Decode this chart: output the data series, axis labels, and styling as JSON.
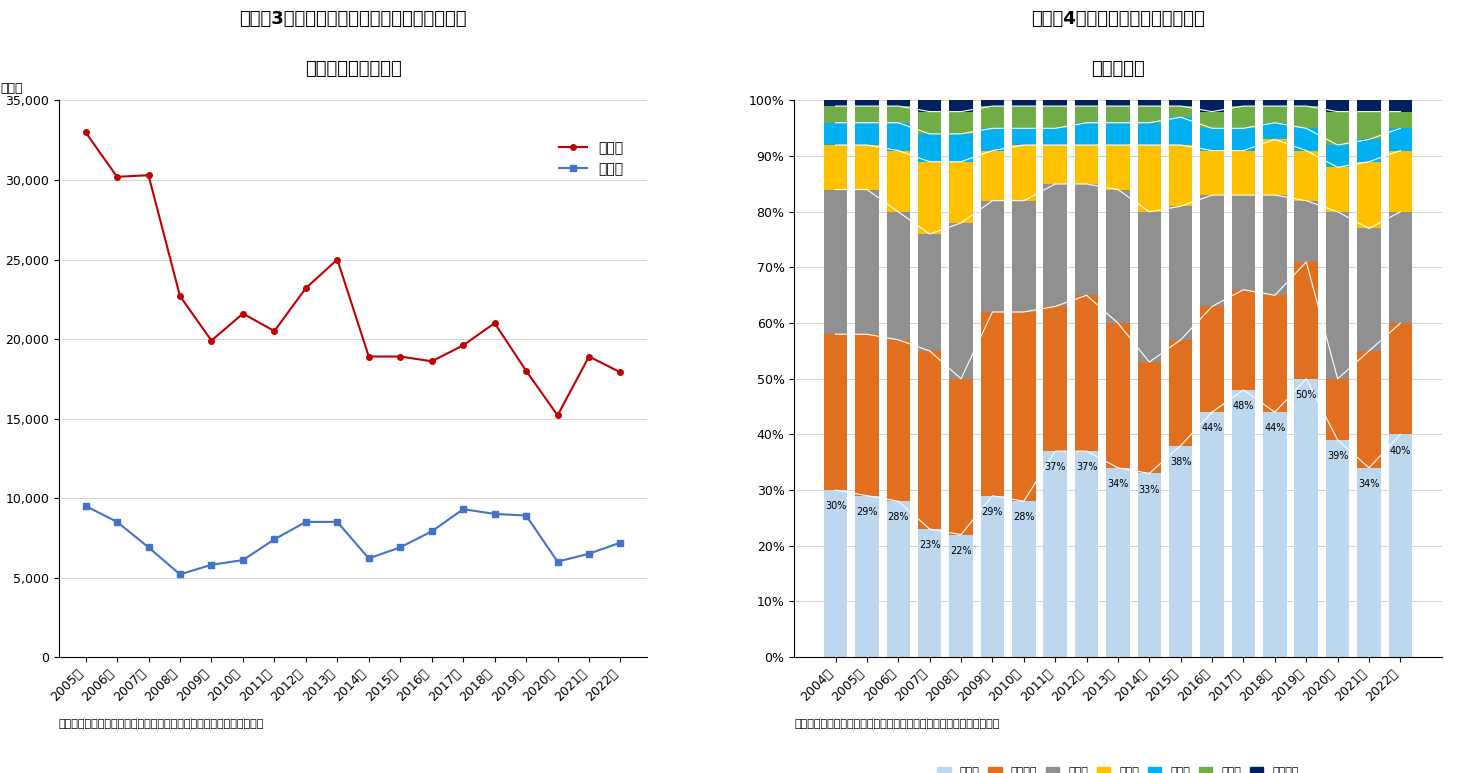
{
  "chart3": {
    "title1": "図表－3　新築分譲マンションの新規供給戸数",
    "title2": "＜近畿圏、大阪市＞",
    "years": [
      "2005年",
      "2006年",
      "2007年",
      "2008年",
      "2009年",
      "2010年",
      "2011年",
      "2012年",
      "2013年",
      "2014年",
      "2015年",
      "2016年",
      "2017年",
      "2018年",
      "2019年",
      "2020年",
      "2021年",
      "2022年"
    ],
    "kinki": [
      33000,
      30200,
      30300,
      22700,
      19900,
      21600,
      20500,
      23200,
      25000,
      18900,
      18900,
      18600,
      19600,
      21000,
      18000,
      15200,
      18900,
      17900
    ],
    "osaka": [
      9500,
      8500,
      6900,
      5200,
      5800,
      6100,
      7400,
      8500,
      8500,
      6200,
      6900,
      7900,
      9300,
      9000,
      8900,
      6000,
      6500,
      7200
    ],
    "kinki_color": "#c00000",
    "osaka_color": "#4472c4",
    "ylabel": "（戸）",
    "ylim": [
      0,
      35000
    ],
    "yticks": [
      0,
      5000,
      10000,
      15000,
      20000,
      25000,
      30000,
      35000
    ],
    "legend_kinki": "近畿圏",
    "legend_osaka": "大阪市",
    "source": "（出所）不動産経済研究所のデータをもとにニッセイ基礎研究所作成"
  },
  "chart4": {
    "title1": "図表－4　新規供給戸数の地域内訳",
    "title2": "＜近畿圏＞",
    "years": [
      "2004年",
      "2005年",
      "2006年",
      "2007年",
      "2008年",
      "2009年",
      "2010年",
      "2011年",
      "2012年",
      "2013年",
      "2014年",
      "2015年",
      "2016年",
      "2017年",
      "2018年",
      "2019年",
      "2020年",
      "2021年",
      "2022年"
    ],
    "osaka_shi": [
      30,
      29,
      28,
      23,
      22,
      29,
      28,
      37,
      37,
      34,
      33,
      38,
      44,
      48,
      44,
      50,
      39,
      34,
      40
    ],
    "osaka_fu": [
      28,
      29,
      29,
      32,
      28,
      33,
      34,
      26,
      28,
      26,
      20,
      19,
      19,
      18,
      21,
      21,
      11,
      21,
      20
    ],
    "hyogo": [
      26,
      26,
      23,
      21,
      28,
      20,
      20,
      22,
      20,
      24,
      27,
      24,
      20,
      17,
      18,
      11,
      30,
      22,
      20
    ],
    "kyoto": [
      8,
      8,
      11,
      13,
      11,
      9,
      10,
      7,
      7,
      8,
      12,
      11,
      8,
      8,
      10,
      9,
      8,
      12,
      11
    ],
    "nara": [
      4,
      4,
      5,
      5,
      5,
      4,
      3,
      3,
      4,
      4,
      4,
      5,
      4,
      4,
      3,
      4,
      4,
      4,
      4
    ],
    "shiga": [
      3,
      3,
      3,
      4,
      4,
      4,
      4,
      4,
      3,
      3,
      3,
      2,
      3,
      4,
      3,
      4,
      6,
      5,
      3
    ],
    "wakayama": [
      1,
      1,
      1,
      2,
      2,
      1,
      1,
      1,
      1,
      1,
      1,
      1,
      2,
      1,
      1,
      1,
      2,
      2,
      2
    ],
    "colors": [
      "#bdd7ee",
      "#e07020",
      "#909090",
      "#ffc000",
      "#00b0f0",
      "#70ad47",
      "#002060"
    ],
    "labels": [
      "大阪市",
      "大阪府下",
      "兵庫県",
      "京都府",
      "奈良県",
      "滋賀県",
      "和歌山県"
    ],
    "source": "（出所）不動産経済研究所のデータをもとにニッセイ基礎研究所作成"
  }
}
